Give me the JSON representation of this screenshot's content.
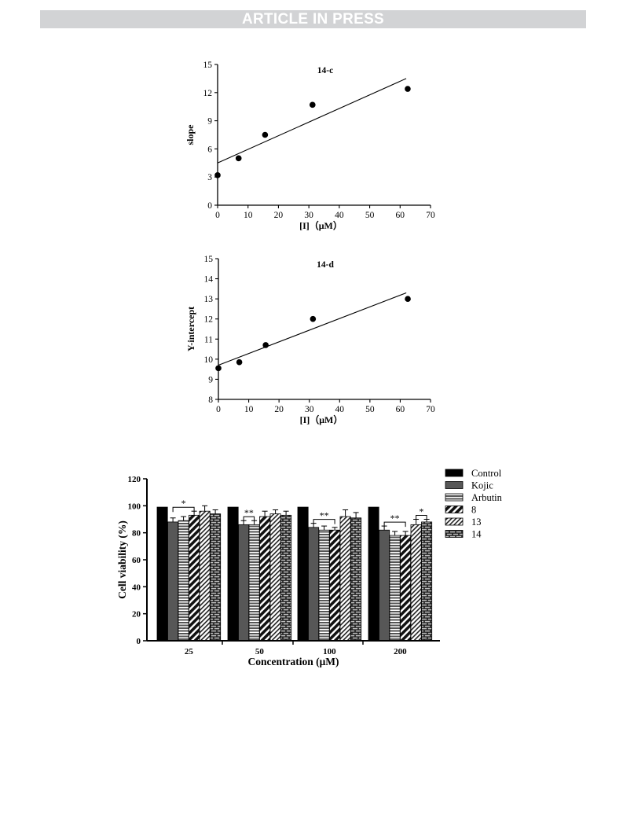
{
  "header": {
    "banner": "ARTICLE IN PRESS"
  },
  "chart_data": [
    {
      "type": "scatter",
      "title": "14-c",
      "xlabel": "[I]（μM）",
      "ylabel": "slope",
      "xlim": [
        0,
        70
      ],
      "ylim": [
        0,
        15
      ],
      "xticks": [
        "0",
        "10",
        "20",
        "30",
        "40",
        "50",
        "60",
        "70"
      ],
      "yticks": [
        "0",
        "3",
        "6",
        "9",
        "12",
        "15"
      ],
      "points": {
        "x": [
          0,
          6.9,
          15.6,
          31.2,
          62.5
        ],
        "y": [
          3.2,
          5.0,
          7.5,
          10.7,
          12.4
        ]
      },
      "fit_line": {
        "x": [
          0,
          62
        ],
        "y": [
          4.5,
          13.5
        ]
      },
      "grid": false
    },
    {
      "type": "scatter",
      "title": "14-d",
      "xlabel": "[I]（μM）",
      "ylabel": "Y-intercept",
      "xlim": [
        0,
        70
      ],
      "ylim": [
        8,
        15
      ],
      "xticks": [
        "0",
        "10",
        "20",
        "30",
        "40",
        "50",
        "60",
        "70"
      ],
      "yticks": [
        "8",
        "9",
        "10",
        "11",
        "12",
        "13",
        "14",
        "15"
      ],
      "points": {
        "x": [
          0,
          6.9,
          15.6,
          31.2,
          62.5
        ],
        "y": [
          9.55,
          9.85,
          10.7,
          12.0,
          13.0
        ]
      },
      "fit_line": {
        "x": [
          0,
          62
        ],
        "y": [
          9.7,
          13.3
        ]
      },
      "grid": false
    },
    {
      "type": "bar",
      "xlabel": "Concentration (μM)",
      "ylabel": "Cell viability (%)",
      "ylim": [
        0,
        120
      ],
      "yticks": [
        "0",
        "20",
        "40",
        "60",
        "80",
        "100",
        "120"
      ],
      "categories": [
        "25",
        "50",
        "100",
        "200"
      ],
      "series": [
        {
          "name": "Control",
          "values": [
            99,
            99,
            99,
            99
          ],
          "errors": [
            0,
            0,
            0,
            0
          ],
          "fill": "solid-black"
        },
        {
          "name": "Kojic",
          "values": [
            88,
            86,
            84,
            82
          ],
          "errors": [
            3,
            3,
            3,
            3
          ],
          "fill": "solid-gray"
        },
        {
          "name": "Arbutin",
          "values": [
            89,
            86,
            82,
            78
          ],
          "errors": [
            3,
            3,
            3,
            3
          ],
          "fill": "hlines"
        },
        {
          "name": "8",
          "values": [
            93,
            92,
            82,
            78
          ],
          "errors": [
            3,
            4,
            2,
            3
          ],
          "fill": "diag-thick"
        },
        {
          "name": "13",
          "values": [
            96,
            94,
            92,
            86
          ],
          "errors": [
            4,
            3,
            5,
            4
          ],
          "fill": "diag-thin"
        },
        {
          "name": "14",
          "values": [
            94,
            93,
            91,
            88
          ],
          "errors": [
            3,
            3,
            4,
            2
          ],
          "fill": "brick"
        }
      ],
      "significance": [
        {
          "category": 0,
          "from": 1,
          "to": 3,
          "label": "*"
        },
        {
          "category": 1,
          "from": 1,
          "to": 2,
          "label": "**"
        },
        {
          "category": 2,
          "from": 1,
          "to": 3,
          "label": "**"
        },
        {
          "category": 3,
          "from": 1,
          "to": 3,
          "label": "**"
        },
        {
          "category": 3,
          "from": 4,
          "to": 5,
          "label": "*"
        }
      ],
      "legend": "right"
    }
  ]
}
